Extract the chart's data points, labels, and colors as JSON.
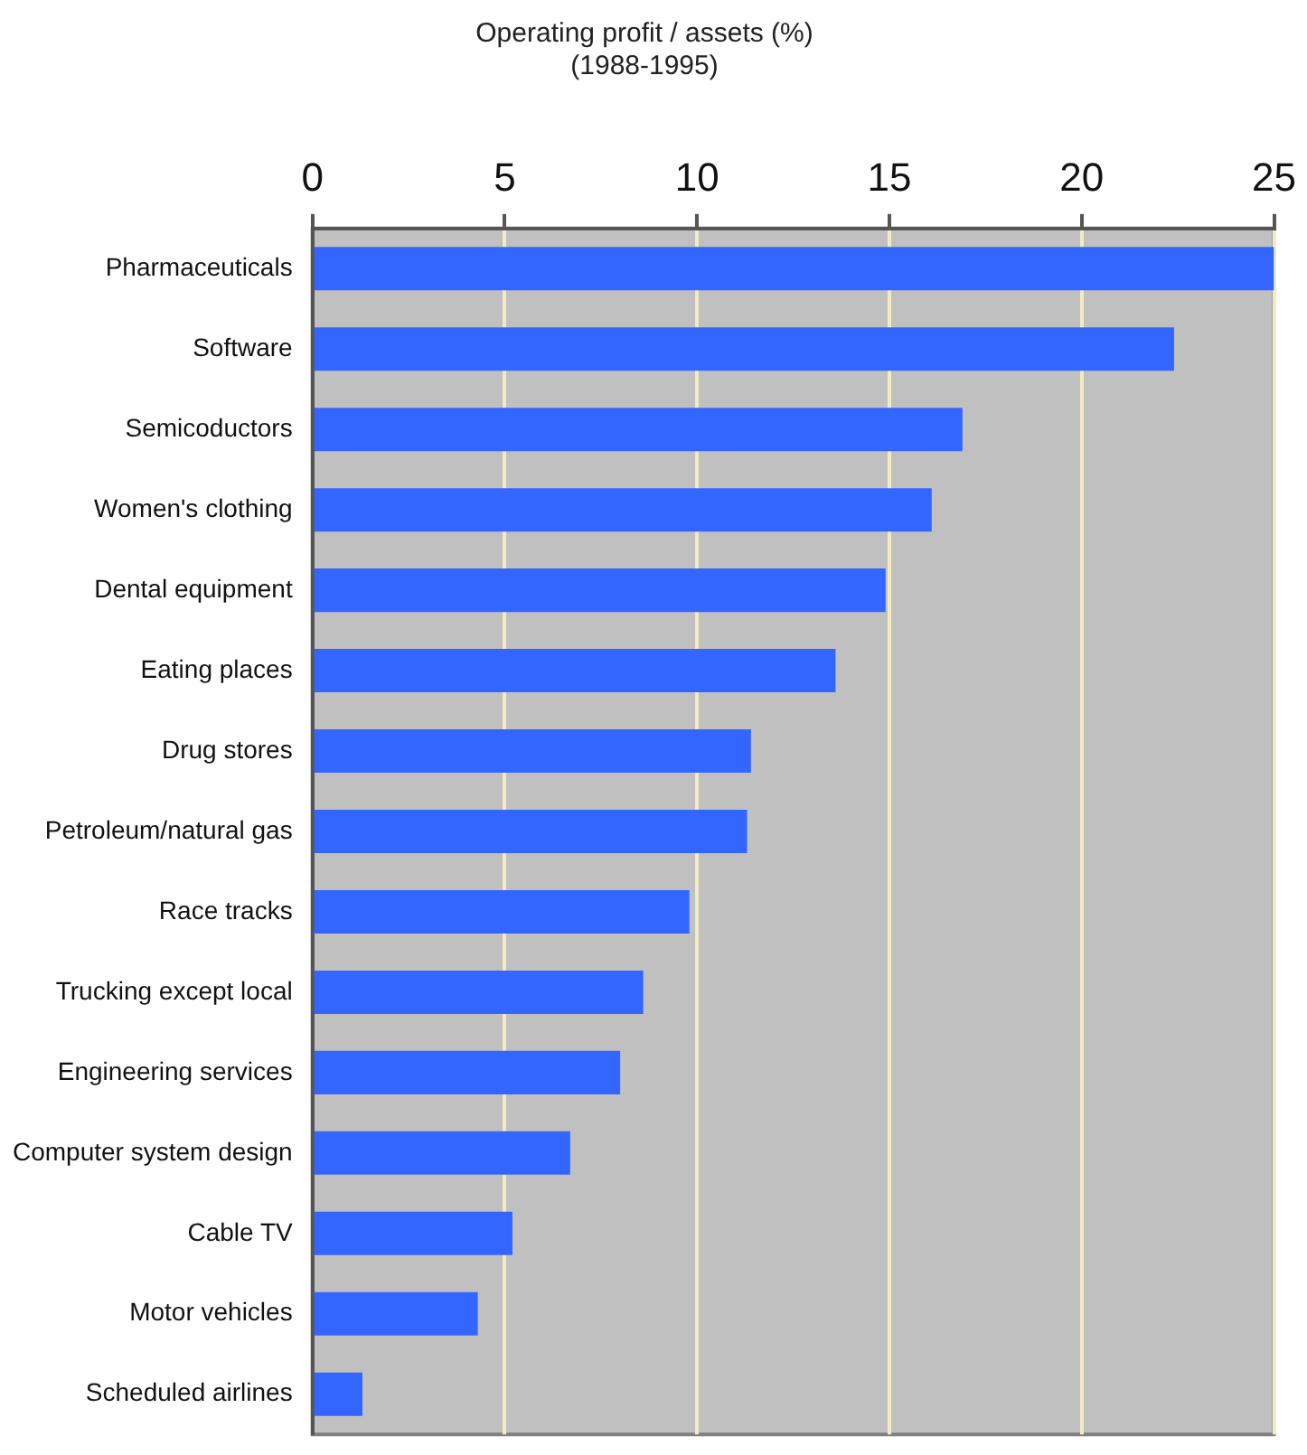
{
  "chart_data": {
    "type": "bar",
    "orientation": "horizontal",
    "title": "Operating profit / assets (%)",
    "subtitle": "(1988-1995)",
    "categories": [
      "Pharmaceuticals",
      "Software",
      "Semicoductors",
      "Women's clothing",
      "Dental equipment",
      "Eating places",
      "Drug stores",
      "Petroleum/natural gas",
      "Race tracks",
      "Trucking except local",
      "Engineering services",
      "Computer system design",
      "Cable TV",
      "Motor vehicles",
      "Scheduled airlines"
    ],
    "values": [
      25,
      22.4,
      16.9,
      16.1,
      14.9,
      13.6,
      11.4,
      11.3,
      9.8,
      8.6,
      8.0,
      6.7,
      5.2,
      4.3,
      1.3
    ],
    "color": "#3366ff",
    "xlim": [
      0,
      25
    ],
    "xticks": [
      0,
      5,
      10,
      15,
      20,
      25
    ],
    "grid": "x",
    "legend": false
  }
}
